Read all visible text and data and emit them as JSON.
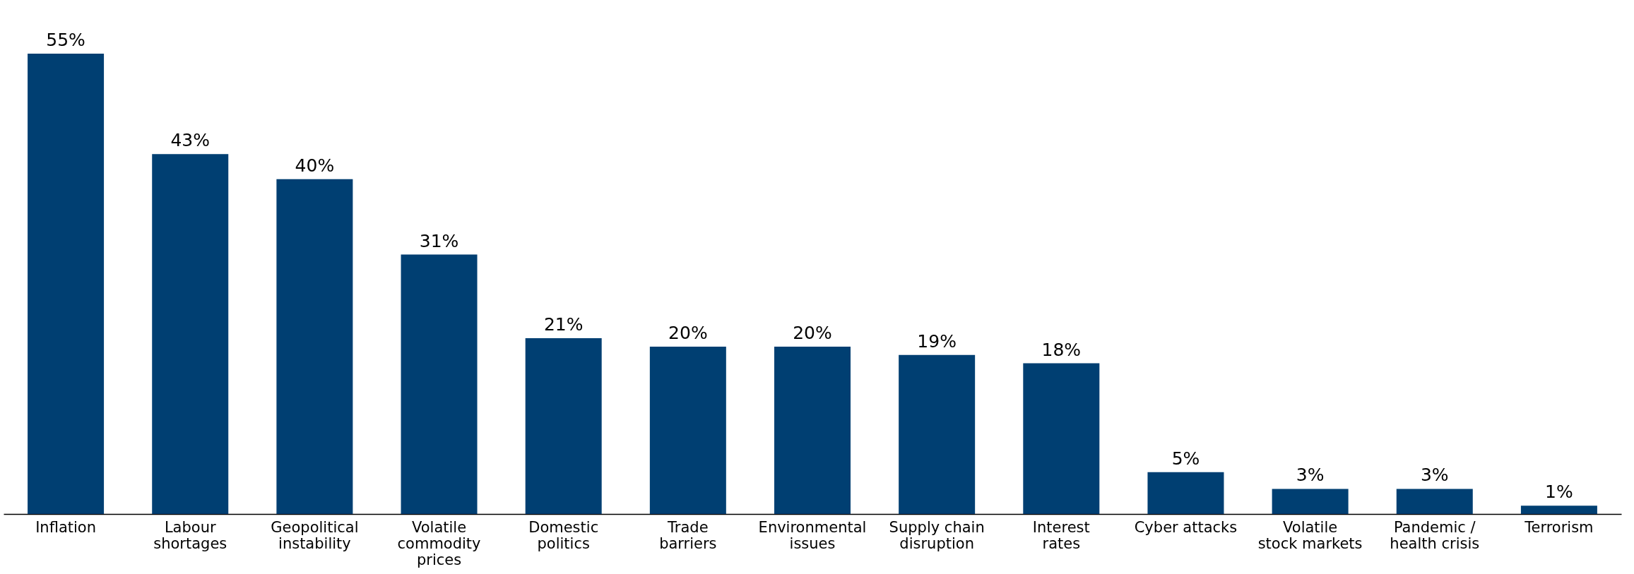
{
  "chart_data": {
    "type": "bar",
    "categories": [
      "Inflation",
      "Labour shortages",
      "Geopolitical instability",
      "Volatile commodity prices",
      "Domestic politics",
      "Trade barriers",
      "Environmental issues",
      "Supply chain disruption",
      "Interest rates",
      "Cyber attacks",
      "Volatile stock markets",
      "Pandemic / health crisis",
      "Terrorism"
    ],
    "values": [
      55,
      43,
      40,
      31,
      21,
      20,
      20,
      19,
      18,
      5,
      3,
      3,
      1
    ],
    "value_labels": [
      "55%",
      "43%",
      "40%",
      "31%",
      "21%",
      "20%",
      "20%",
      "19%",
      "18%",
      "5%",
      "3%",
      "3%",
      "1%"
    ],
    "color": "#003f72",
    "grid": false,
    "tick_labels": "x"
  }
}
